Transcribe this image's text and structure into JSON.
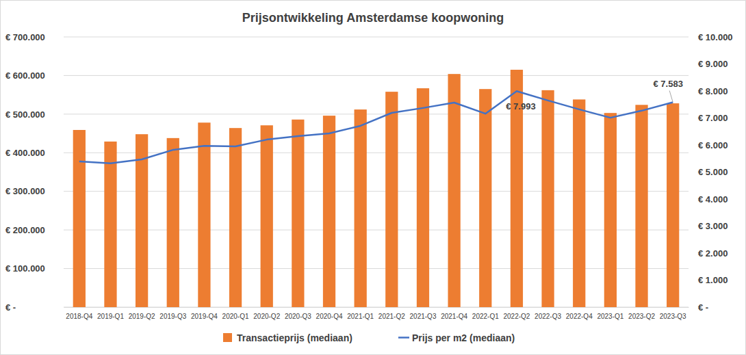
{
  "chart_data": {
    "type": "bar",
    "title": "Prijsontwikkeling Amsterdamse koopwoning",
    "categories": [
      "2018-Q4",
      "2019-Q1",
      "2019-Q2",
      "2019-Q3",
      "2019-Q4",
      "2020-Q1",
      "2020-Q2",
      "2020-Q3",
      "2020-Q4",
      "2021-Q1",
      "2021-Q2",
      "2021-Q3",
      "2021-Q4",
      "2022-Q1",
      "2022-Q2",
      "2022-Q3",
      "2022-Q4",
      "2023-Q1",
      "2023-Q2",
      "2023-Q3"
    ],
    "series": [
      {
        "name": "Transactieprijs (mediaan)",
        "type": "bar",
        "color": "#ed7d31",
        "values": [
          459000,
          429000,
          448000,
          438000,
          478000,
          464000,
          471000,
          486000,
          496000,
          512000,
          558000,
          567000,
          604000,
          565000,
          615000,
          562000,
          538000,
          503000,
          524000,
          528000
        ]
      },
      {
        "name": "Prijs per m2 (mediaan)",
        "type": "line",
        "color": "#4472c4",
        "axis": "y2",
        "values": [
          5390,
          5320,
          5470,
          5820,
          5970,
          5950,
          6200,
          6330,
          6430,
          6710,
          7190,
          7370,
          7570,
          7160,
          7993,
          7650,
          7320,
          7010,
          7270,
          7583
        ]
      }
    ],
    "ylim": [
      0,
      700000
    ],
    "yticks": [
      {
        "value": 0,
        "label": "€ -"
      },
      {
        "value": 100000,
        "label": "€ 100.000"
      },
      {
        "value": 200000,
        "label": "€ 200.000"
      },
      {
        "value": 300000,
        "label": "€ 300.000"
      },
      {
        "value": 400000,
        "label": "€ 400.000"
      },
      {
        "value": 500000,
        "label": "€ 500.000"
      },
      {
        "value": 600000,
        "label": "€ 600.000"
      },
      {
        "value": 700000,
        "label": "€ 700.000"
      }
    ],
    "y2lim": [
      0,
      10000
    ],
    "y2ticks": [
      {
        "value": 0,
        "label": "€ -"
      },
      {
        "value": 1000,
        "label": "€ 1.000"
      },
      {
        "value": 2000,
        "label": "€ 2.000"
      },
      {
        "value": 3000,
        "label": "€ 3.000"
      },
      {
        "value": 4000,
        "label": "€ 4.000"
      },
      {
        "value": 5000,
        "label": "€ 5.000"
      },
      {
        "value": 6000,
        "label": "€ 6.000"
      },
      {
        "value": 7000,
        "label": "€ 7.000"
      },
      {
        "value": 8000,
        "label": "€ 8.000"
      },
      {
        "value": 9000,
        "label": "€ 9.000"
      },
      {
        "value": 10000,
        "label": "€ 10.000"
      }
    ],
    "grid": true,
    "legend": "bottom",
    "annotations": [
      {
        "x": "2022-Q2",
        "y": 7993,
        "text": "€ 7.993"
      },
      {
        "x": "2023-Q3",
        "y": 7583,
        "text": "€ 7.583"
      }
    ]
  }
}
